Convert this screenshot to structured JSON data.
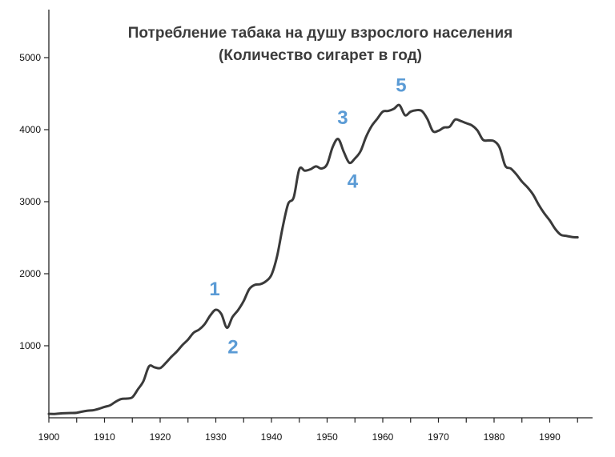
{
  "chart_data": {
    "type": "line",
    "title": "Потребление табака на душу взрослого населения",
    "subtitle": "(Количество сигарет в год)",
    "xlabel": "",
    "ylabel": "",
    "xlim": [
      1900,
      1996
    ],
    "ylim": [
      0,
      5500
    ],
    "grid": false,
    "line_color": "#3a3a3a",
    "annotation_color": "#5b9bd5",
    "x_ticks": [
      "1900",
      "1910",
      "1920",
      "1930",
      "1940",
      "1950",
      "1960",
      "1970",
      "1980",
      "1990"
    ],
    "y_ticks": [
      "1000",
      "2000",
      "3000",
      "4000",
      "5000"
    ],
    "annotations": [
      {
        "label": "1",
        "x": 1929.8,
        "y": 1500
      },
      {
        "label": "2",
        "x": 1932.8,
        "y": 1230
      },
      {
        "label": "3",
        "x": 1952.8,
        "y": 3880
      },
      {
        "label": "4",
        "x": 1954.3,
        "y": 3550
      },
      {
        "label": "5",
        "x": 1963.3,
        "y": 4330
      }
    ],
    "series": [
      {
        "x": [
          1900,
          1901,
          1902,
          1903,
          1904,
          1905,
          1906,
          1907,
          1908,
          1909,
          1910,
          1911,
          1912,
          1913,
          1914,
          1915,
          1916,
          1917,
          1918,
          1919,
          1920,
          1921,
          1922,
          1923,
          1924,
          1925,
          1926,
          1927,
          1928,
          1929,
          1930,
          1931,
          1932,
          1933,
          1934,
          1935,
          1936,
          1937,
          1938,
          1939,
          1940,
          1941,
          1942,
          1943,
          1944,
          1945,
          1946,
          1947,
          1948,
          1949,
          1950,
          1951,
          1952,
          1953,
          1954,
          1955,
          1956,
          1957,
          1958,
          1959,
          1960,
          1961,
          1962,
          1963,
          1964,
          1965,
          1966,
          1967,
          1968,
          1969,
          1970,
          1971,
          1972,
          1973,
          1974,
          1975,
          1976,
          1977,
          1978,
          1979,
          1980,
          1981,
          1982,
          1983,
          1984,
          1985,
          1986,
          1987,
          1988,
          1989,
          1990,
          1991,
          1992,
          1993,
          1994,
          1995
        ],
        "y": [
          54,
          53,
          60,
          64,
          66,
          70,
          86,
          99,
          105,
          125,
          151,
          173,
          223,
          260,
          267,
          285,
          395,
          510,
          715,
          700,
          690,
          760,
          845,
          920,
          1010,
          1085,
          1180,
          1225,
          1300,
          1420,
          1500,
          1440,
          1250,
          1400,
          1495,
          1620,
          1785,
          1845,
          1855,
          1895,
          1985,
          2240,
          2640,
          2970,
          3060,
          3450,
          3430,
          3450,
          3490,
          3460,
          3520,
          3760,
          3870,
          3690,
          3540,
          3600,
          3700,
          3900,
          4050,
          4150,
          4250,
          4260,
          4290,
          4340,
          4200,
          4250,
          4270,
          4260,
          4150,
          3980,
          3985,
          4030,
          4040,
          4140,
          4120,
          4090,
          4060,
          3990,
          3860,
          3850,
          3840,
          3750,
          3500,
          3460,
          3380,
          3280,
          3200,
          3100,
          2960,
          2840,
          2740,
          2620,
          2540,
          2525,
          2510,
          2505
        ]
      }
    ]
  }
}
